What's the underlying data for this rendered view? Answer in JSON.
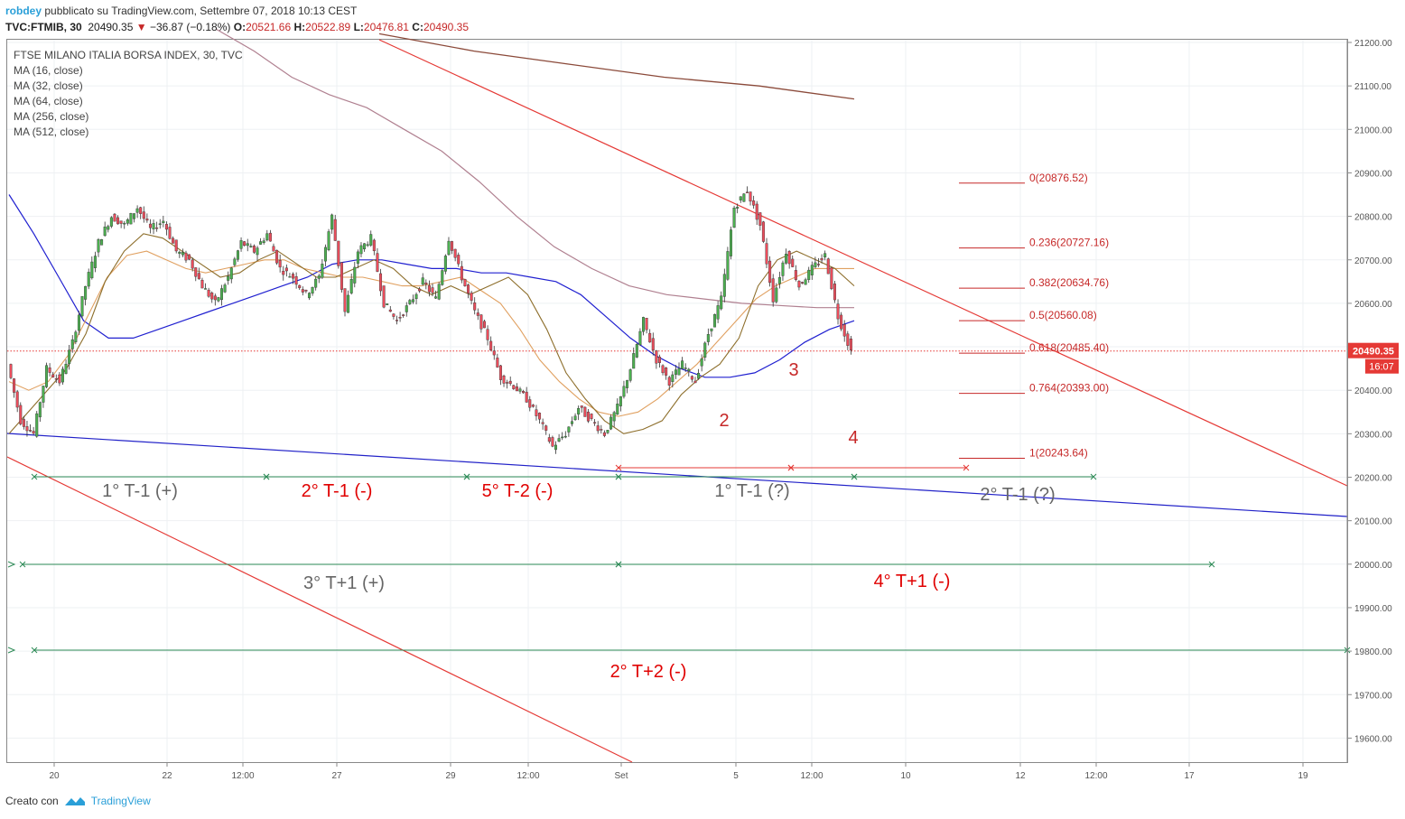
{
  "header": {
    "author": "robdey",
    "published": "pubblicato su TradingView.com, Settembre 07, 2018 10:13 CEST"
  },
  "quote": {
    "symbol": "TVC:FTMIB, 30",
    "last": "20490.35",
    "arrow": "▼",
    "change": "−36.87 (−0.18%)",
    "open_label": "O:",
    "open": "20521.66",
    "high_label": "H:",
    "high": "20522.89",
    "low_label": "L:",
    "low": "20476.81",
    "close_label": "C:",
    "close": "20490.35"
  },
  "legend": {
    "title": "FTSE MILANO ITALIA BORSA INDEX, 30, TVC",
    "ma": [
      "MA (16, close)",
      "MA (32, close)",
      "MA (64, close)",
      "MA (256, close)",
      "MA (512, close)"
    ]
  },
  "footer": {
    "created_with": "Creato con",
    "brand": "TradingView"
  },
  "colors": {
    "up": "#53b987",
    "down": "#eb4d5c",
    "candle_body": "#4caf50",
    "ma16": "#8d6e2b",
    "ma32": "#e0a060",
    "ma64": "#2020d0",
    "ma256": "#b08090",
    "ma512": "#8b4a3a",
    "trend": "#e53935",
    "support": "#2121c8",
    "cycle": "#2e8b57",
    "fib": "#c62828",
    "price_tag": "#e53935"
  },
  "chart_data": {
    "type": "line",
    "title": "FTSE MILANO ITALIA BORSA INDEX, 30, TVC",
    "ylim": [
      19550,
      21220
    ],
    "y_ticks": [
      "21200.00",
      "21100.00",
      "21000.00",
      "20900.00",
      "20800.00",
      "20700.00",
      "20600.00",
      "20500.00",
      "20400.00",
      "20300.00",
      "20200.00",
      "20100.00",
      "20000.00",
      "19900.00",
      "19800.00",
      "19700.00",
      "19600.00"
    ],
    "x_ticks": [
      "20",
      "22",
      "12:00",
      "27",
      "29",
      "12:00",
      "Set",
      "5",
      "12:00",
      "10",
      "12",
      "12:00",
      "17",
      "19"
    ],
    "last_price": "20490.35",
    "countdown": "16:07",
    "fib_levels": [
      {
        "label": "0(20876.52)",
        "value": 20876.52
      },
      {
        "label": "0.236(20727.16)",
        "value": 20727.16
      },
      {
        "label": "0.382(20634.76)",
        "value": 20634.76
      },
      {
        "label": "0.5(20560.08)",
        "value": 20560.08
      },
      {
        "label": "0.618(20485.40)",
        "value": 20485.4
      },
      {
        "label": "0.764(20393.00)",
        "value": 20393.0
      },
      {
        "label": "1(20243.64)",
        "value": 20243.64
      }
    ],
    "price_path": [
      [
        20460,
        20330
      ],
      [
        20330,
        20300
      ],
      [
        20300,
        20450
      ],
      [
        20450,
        20420
      ],
      [
        20420,
        20510
      ],
      [
        20510,
        20640
      ],
      [
        20640,
        20740
      ],
      [
        20740,
        20800
      ],
      [
        20800,
        20780
      ],
      [
        20780,
        20820
      ],
      [
        20820,
        20770
      ],
      [
        20770,
        20790
      ],
      [
        20790,
        20720
      ],
      [
        20720,
        20700
      ],
      [
        20700,
        20640
      ],
      [
        20640,
        20600
      ],
      [
        20600,
        20660
      ],
      [
        20660,
        20740
      ],
      [
        20740,
        20720
      ],
      [
        20720,
        20760
      ],
      [
        20760,
        20680
      ],
      [
        20680,
        20660
      ],
      [
        20660,
        20620
      ],
      [
        20620,
        20660
      ],
      [
        20660,
        20800
      ],
      [
        20800,
        20580
      ],
      [
        20580,
        20720
      ],
      [
        20720,
        20750
      ],
      [
        20750,
        20600
      ],
      [
        20600,
        20560
      ],
      [
        20560,
        20600
      ],
      [
        20600,
        20650
      ],
      [
        20650,
        20610
      ],
      [
        20610,
        20750
      ],
      [
        20750,
        20660
      ],
      [
        20660,
        20580
      ],
      [
        20580,
        20520
      ],
      [
        20520,
        20430
      ],
      [
        20430,
        20410
      ],
      [
        20410,
        20380
      ],
      [
        20380,
        20330
      ],
      [
        20330,
        20270
      ],
      [
        20270,
        20300
      ],
      [
        20300,
        20360
      ],
      [
        20360,
        20330
      ],
      [
        20330,
        20300
      ],
      [
        20300,
        20360
      ],
      [
        20360,
        20450
      ],
      [
        20450,
        20560
      ],
      [
        20560,
        20470
      ],
      [
        20470,
        20420
      ],
      [
        20420,
        20460
      ],
      [
        20460,
        20420
      ],
      [
        20420,
        20530
      ],
      [
        20530,
        20610
      ],
      [
        20610,
        20820
      ],
      [
        20820,
        20860
      ],
      [
        20860,
        20780
      ],
      [
        20780,
        20610
      ],
      [
        20610,
        20720
      ],
      [
        20720,
        20640
      ],
      [
        20640,
        20680
      ],
      [
        20680,
        20710
      ],
      [
        20710,
        20570
      ],
      [
        20570,
        20490
      ]
    ],
    "ma_values": {
      "ma16": [
        20300,
        20350,
        20400,
        20450,
        20530,
        20650,
        20720,
        20760,
        20750,
        20720,
        20690,
        20660,
        20670,
        20700,
        20720,
        20690,
        20660,
        20660,
        20680,
        20700,
        20680,
        20640,
        20620,
        20640,
        20620,
        20640,
        20660,
        20620,
        20540,
        20440,
        20380,
        20330,
        20300,
        20310,
        20330,
        20390,
        20430,
        20460,
        20520,
        20640,
        20700,
        20720,
        20700,
        20680,
        20640
      ],
      "ma32": [
        20420,
        20400,
        20420,
        20480,
        20570,
        20660,
        20710,
        20720,
        20700,
        20680,
        20670,
        20680,
        20690,
        20700,
        20700,
        20680,
        20670,
        20660,
        20660,
        20650,
        20640,
        20640,
        20650,
        20660,
        20630,
        20600,
        20540,
        20470,
        20420,
        20380,
        20350,
        20340,
        20350,
        20380,
        20420,
        20460,
        20510,
        20560,
        20610,
        20640,
        20660,
        20680,
        20680,
        20680
      ],
      "ma64": [
        20850,
        20760,
        20660,
        20560,
        20520,
        20520,
        20540,
        20560,
        20580,
        20600,
        20620,
        20640,
        20660,
        20690,
        20700,
        20700,
        20690,
        20680,
        20680,
        20670,
        20670,
        20660,
        20650,
        20620,
        20570,
        20520,
        20480,
        20450,
        20430,
        20430,
        20440,
        20470,
        20510,
        20540,
        20560
      ],
      "ma256": [
        21230,
        21180,
        21120,
        21080,
        21050,
        21000,
        20950,
        20880,
        20800,
        20730,
        20680,
        20640,
        20620,
        20610,
        20600,
        20595,
        20590,
        20590
      ],
      "ma512": [
        21220,
        21180,
        21150,
        21120,
        21100,
        21070
      ]
    }
  },
  "annotations": {
    "wave_labels": [
      "2",
      "3",
      "4"
    ],
    "cycles_row1": [
      "1° T-1 (+)",
      "2° T-1 (-)",
      "5° T-2 (-)",
      "1° T-1 (?)",
      "2° T-1 (?)"
    ],
    "cycles_row2": [
      "3° T+1 (+)",
      "4° T+1 (-)"
    ],
    "cycles_row3": [
      "2° T+2 (-)"
    ]
  }
}
